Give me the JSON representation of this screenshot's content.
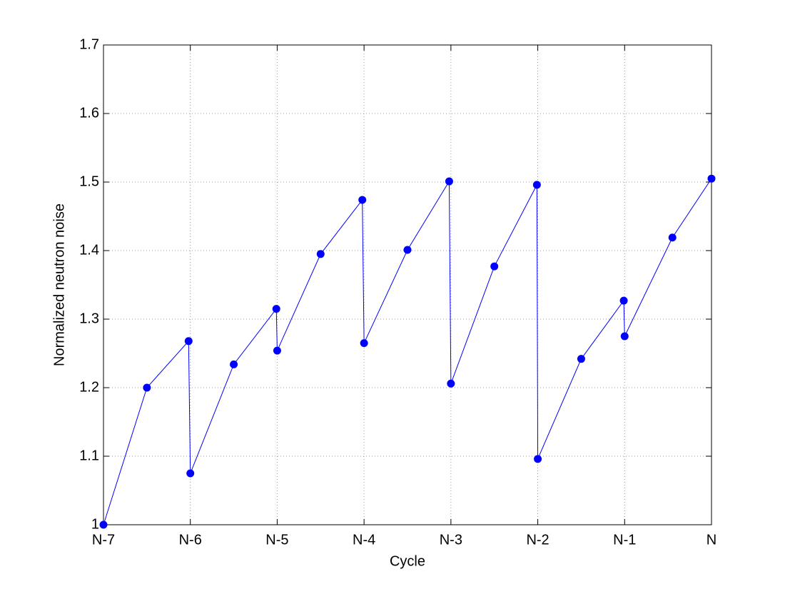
{
  "chart_data": {
    "type": "line",
    "x_label": "Cycle",
    "y_label": "Normalized neutron noise",
    "x": [
      0,
      0.5,
      0.98,
      1,
      1.5,
      1.99,
      2,
      2.5,
      2.98,
      3,
      3.5,
      3.98,
      4,
      4.5,
      4.99,
      5,
      5.5,
      5.99,
      6,
      6.55,
      7
    ],
    "series": [
      {
        "color": "#0000ff",
        "values": [
          1.0,
          1.2,
          1.268,
          1.075,
          1.234,
          1.315,
          1.254,
          1.395,
          1.474,
          1.265,
          1.401,
          1.501,
          1.206,
          1.377,
          1.496,
          1.096,
          1.242,
          1.327,
          1.275,
          1.419,
          1.505
        ]
      }
    ],
    "xlim": [
      0,
      7
    ],
    "xticks": [
      {
        "value": 0,
        "label": "N-7"
      },
      {
        "value": 1,
        "label": "N-6"
      },
      {
        "value": 2,
        "label": "N-5"
      },
      {
        "value": 3,
        "label": "N-4"
      },
      {
        "value": 4,
        "label": "N-3"
      },
      {
        "value": 5,
        "label": "N-2"
      },
      {
        "value": 6,
        "label": "N-1"
      },
      {
        "value": 7,
        "label": "N"
      }
    ],
    "ylim": [
      1,
      1.7
    ],
    "yticks": [
      1,
      1.1,
      1.2,
      1.3,
      1.4,
      1.5,
      1.6,
      1.7
    ],
    "grid": true
  }
}
